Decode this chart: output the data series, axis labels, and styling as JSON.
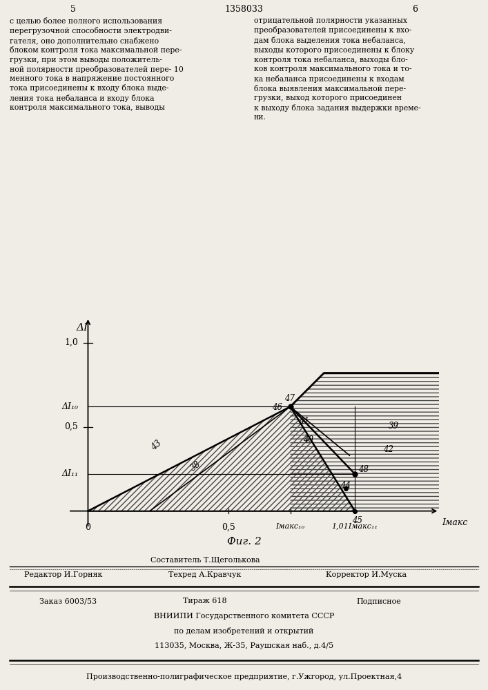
{
  "patent_num": "1358033",
  "page_left": "5",
  "page_right": "6",
  "fig_label": "Фиг. 2",
  "ax_ylabel": "ΔI",
  "ax_xlabel": "Iмакс",
  "ytick_labels": [
    "1,0",
    "0,5"
  ],
  "ytick_positions": [
    1.0,
    0.5
  ],
  "xtick_labels": [
    "0",
    "0,5"
  ],
  "xtick_positions": [
    0.0,
    0.5
  ],
  "dI10_label": "ΔI₁₀",
  "dI11_label": "ΔI₁₁",
  "dI10_val": 0.62,
  "dI11_val": 0.22,
  "Imaks10_val": 0.72,
  "Imaks11_val": 0.95,
  "Imaks10_label": "Iмакс₁₀",
  "Imaks11_label": "1,01Iмакс₁₁",
  "xmax": 1.25,
  "ymax": 1.15,
  "bg_color": "#f0ede6",
  "left_text_lines": [
    "с целью более полного использования",
    "перегрузочной способности электродви-",
    "гателя, оно дополнительно снабжено",
    "блоком контроля тока максимальной пере-",
    "грузки, при этом выводы положитель-",
    "ной полярности преобразователей пере- 10",
    "менного тока в напряжение постоянного",
    "тока присоединены к входу блока выде-",
    "ления тока небаланса и входу блока",
    "контроля максимального тока, выводы"
  ],
  "right_text_lines": [
    "отрицательной полярности указанных",
    "преобразователей присоединены к вхо-",
    "дам блока выделения тока небаланса,",
    "выходы которого присоединены к блоку",
    "контроля тока небаланса, выходы бло-",
    "ков контроля максимального тока и то-",
    "ка небаланса присоединены к входам",
    "блока выявления максимальной пере-",
    "грузки, выход которого присоединен",
    "к выходу блока задания выдержки време-",
    "ни."
  ],
  "footer_editor": "Редактор И.Горняк",
  "footer_author": "Составитель Т.Щеголькова",
  "footer_tech": "Техред А.Кравчук",
  "footer_corrector": "Корректор И.Муска",
  "footer_order": "Заказ 6003/53",
  "footer_tirazh": "Тираж 618",
  "footer_podp": "Подписное",
  "footer_vniip": "ВНИИПИ Государственного комитета СССР",
  "footer_po_delam": "по делам изобретений и открытий",
  "footer_addr": "113035, Москва, Ж-35, Раушская наб., д.4/5",
  "footer_last": "Производственно-полиграфическое предприятие, г.Ужгород, ул.Проектная,4"
}
